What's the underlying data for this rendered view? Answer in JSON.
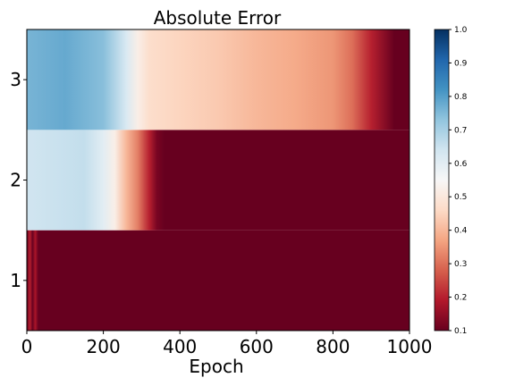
{
  "chart_data": {
    "type": "heatmap",
    "title": "Absolute Error",
    "xlabel": "Epoch",
    "ylabel": "",
    "xlim": [
      0,
      1000
    ],
    "x_ticks": [
      "0",
      "200",
      "400",
      "600",
      "800",
      "1000"
    ],
    "x_tick_values": [
      0,
      200,
      400,
      600,
      800,
      1000
    ],
    "rows": [
      "1",
      "2",
      "3"
    ],
    "colormap": "RdBu",
    "color_range": [
      0.1,
      1.0
    ],
    "colorbar_ticks": [
      "0.1",
      "0.2",
      "0.3",
      "0.4",
      "0.5",
      "0.6",
      "0.7",
      "0.8",
      "0.9",
      "1.0"
    ],
    "colorbar_tick_values": [
      0.1,
      0.2,
      0.3,
      0.4,
      0.5,
      0.6,
      0.7,
      0.8,
      0.9,
      1.0
    ],
    "series": [
      {
        "row": "1",
        "points": [
          [
            0,
            0.1
          ],
          [
            8,
            0.2
          ],
          [
            15,
            0.1
          ],
          [
            22,
            0.18
          ],
          [
            30,
            0.1
          ],
          [
            1000,
            0.1
          ]
        ]
      },
      {
        "row": "2",
        "points": [
          [
            0,
            0.64
          ],
          [
            150,
            0.66
          ],
          [
            200,
            0.6
          ],
          [
            230,
            0.52
          ],
          [
            260,
            0.4
          ],
          [
            290,
            0.32
          ],
          [
            320,
            0.2
          ],
          [
            340,
            0.12
          ],
          [
            360,
            0.1
          ],
          [
            1000,
            0.1
          ]
        ]
      },
      {
        "row": "3",
        "points": [
          [
            0,
            0.76
          ],
          [
            100,
            0.78
          ],
          [
            200,
            0.74
          ],
          [
            260,
            0.62
          ],
          [
            290,
            0.52
          ],
          [
            320,
            0.47
          ],
          [
            400,
            0.45
          ],
          [
            500,
            0.43
          ],
          [
            600,
            0.4
          ],
          [
            700,
            0.38
          ],
          [
            800,
            0.35
          ],
          [
            850,
            0.3
          ],
          [
            900,
            0.2
          ],
          [
            960,
            0.1
          ],
          [
            1000,
            0.1
          ]
        ]
      }
    ]
  }
}
